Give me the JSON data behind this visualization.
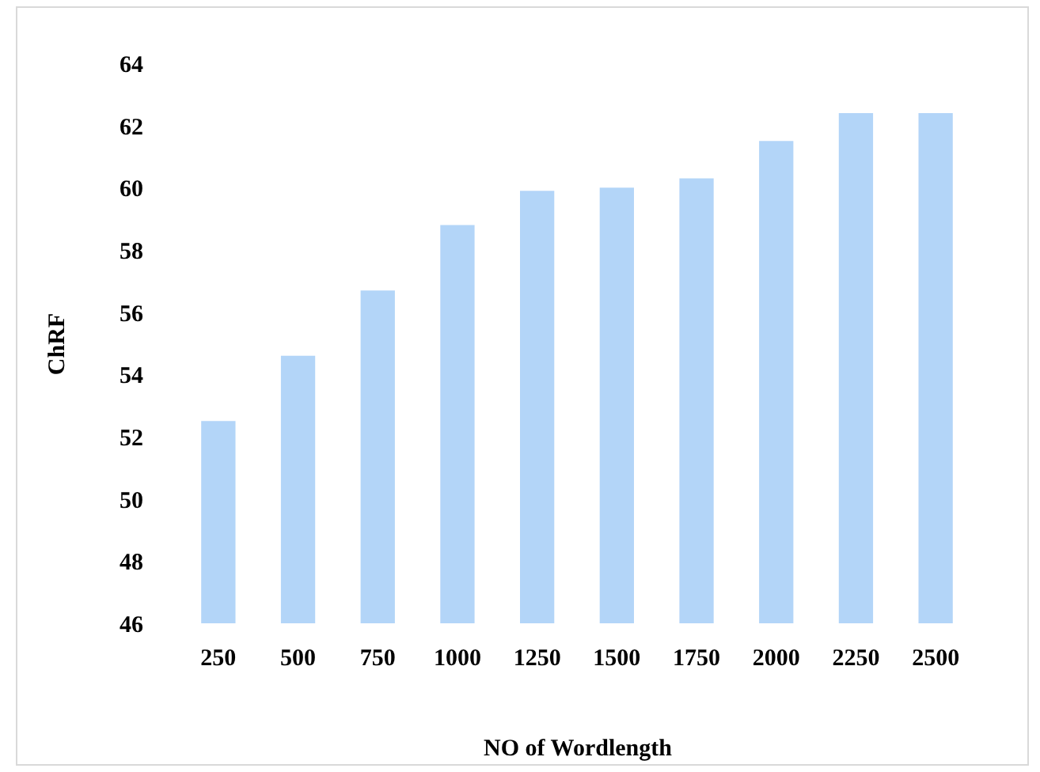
{
  "chart_data": {
    "type": "bar",
    "xlabel": "NO of Wordlength",
    "ylabel": "ChRF",
    "categories": [
      "250",
      "500",
      "750",
      "1000",
      "1250",
      "1500",
      "1750",
      "2000",
      "2250",
      "2500"
    ],
    "values": [
      52.5,
      54.6,
      56.7,
      58.8,
      59.9,
      60.0,
      60.3,
      61.5,
      62.4,
      62.4
    ],
    "color": "#b3d5f8",
    "ylim": [
      46,
      64
    ],
    "yticks": [
      46,
      48,
      50,
      52,
      54,
      56,
      58,
      60,
      62,
      64
    ],
    "grid": false
  }
}
